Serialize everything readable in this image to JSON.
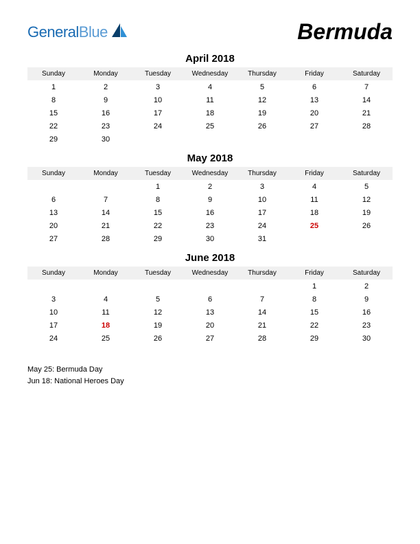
{
  "logo": {
    "text1": "General",
    "text2": "Blue",
    "color1": "#1a6bb3",
    "color2": "#5a9bd4",
    "icon_color_dark": "#0a3f6b",
    "icon_color_light": "#2f8fd4"
  },
  "title": "Bermuda",
  "day_headers": [
    "Sunday",
    "Monday",
    "Tuesday",
    "Wednesday",
    "Thursday",
    "Friday",
    "Saturday"
  ],
  "months": [
    {
      "title": "April 2018",
      "weeks": [
        [
          "1",
          "2",
          "3",
          "4",
          "5",
          "6",
          "7"
        ],
        [
          "8",
          "9",
          "10",
          "11",
          "12",
          "13",
          "14"
        ],
        [
          "15",
          "16",
          "17",
          "18",
          "19",
          "20",
          "21"
        ],
        [
          "22",
          "23",
          "24",
          "25",
          "26",
          "27",
          "28"
        ],
        [
          "29",
          "30",
          "",
          "",
          "",
          "",
          ""
        ]
      ],
      "holidays": []
    },
    {
      "title": "May 2018",
      "weeks": [
        [
          "",
          "",
          "1",
          "2",
          "3",
          "4",
          "5"
        ],
        [
          "6",
          "7",
          "8",
          "9",
          "10",
          "11",
          "12"
        ],
        [
          "13",
          "14",
          "15",
          "16",
          "17",
          "18",
          "19"
        ],
        [
          "20",
          "21",
          "22",
          "23",
          "24",
          "25",
          "26"
        ],
        [
          "27",
          "28",
          "29",
          "30",
          "31",
          "",
          ""
        ]
      ],
      "holidays": [
        "25"
      ]
    },
    {
      "title": "June 2018",
      "weeks": [
        [
          "",
          "",
          "",
          "",
          "",
          "1",
          "2"
        ],
        [
          "3",
          "4",
          "5",
          "6",
          "7",
          "8",
          "9"
        ],
        [
          "10",
          "11",
          "12",
          "13",
          "14",
          "15",
          "16"
        ],
        [
          "17",
          "18",
          "19",
          "20",
          "21",
          "22",
          "23"
        ],
        [
          "24",
          "25",
          "26",
          "27",
          "28",
          "29",
          "30"
        ]
      ],
      "holidays": [
        "18"
      ]
    }
  ],
  "holiday_notes": [
    "May 25: Bermuda Day",
    "Jun 18: National Heroes Day"
  ],
  "styling": {
    "page_bg": "#ffffff",
    "header_bg": "#f0f0f0",
    "text_color": "#000000",
    "holiday_color": "#cc0000",
    "title_fontsize": 32,
    "month_title_fontsize": 15,
    "dayheader_fontsize": 10,
    "cell_fontsize": 11,
    "note_fontsize": 11
  }
}
